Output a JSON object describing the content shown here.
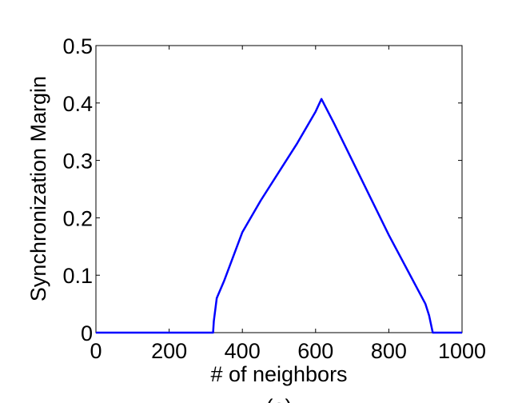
{
  "chart_data": {
    "type": "line",
    "xlabel": "# of neighbors",
    "ylabel": "Synchronization Margin",
    "caption": "(a)",
    "x": [
      0,
      320,
      322,
      330,
      350,
      400,
      450,
      500,
      550,
      600,
      616,
      650,
      700,
      750,
      800,
      850,
      900,
      910,
      920,
      1000
    ],
    "series": [
      {
        "color": "#0000ff",
        "values": [
          0,
          0,
          0.02,
          0.06,
          0.09,
          0.175,
          0.23,
          0.28,
          0.33,
          0.385,
          0.407,
          0.365,
          0.3,
          0.235,
          0.17,
          0.11,
          0.05,
          0.03,
          0,
          0
        ]
      }
    ],
    "xlim": [
      0,
      1000
    ],
    "xticks": [
      0,
      200,
      400,
      600,
      800,
      1000
    ],
    "ylim": [
      0,
      0.5
    ],
    "yticks": [
      0,
      0.1,
      0.2,
      0.3,
      0.4,
      0.5
    ]
  }
}
